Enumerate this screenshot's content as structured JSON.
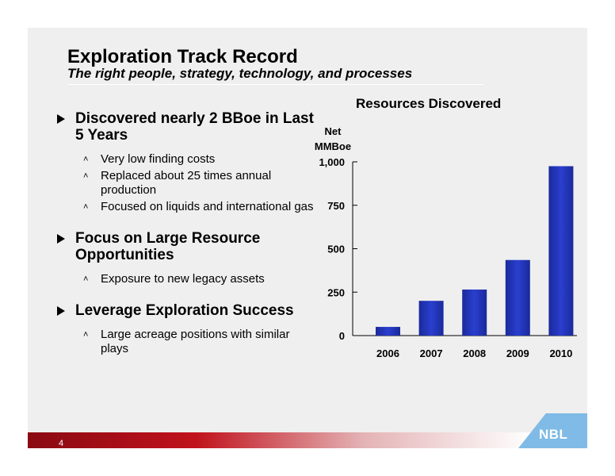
{
  "slide": {
    "title": "Exploration Track Record",
    "subtitle": "The right people, strategy, technology, and processes",
    "page_number": "4",
    "logo": "NBL"
  },
  "bullets": [
    {
      "text": "Discovered nearly 2 BBoe in Last 5 Years",
      "sub": [
        "Very low finding costs",
        "Replaced about 25 times annual production",
        "Focused on liquids and international gas"
      ]
    },
    {
      "text": "Focus on Large Resource Opportunities",
      "sub": [
        "Exposure to new legacy assets"
      ]
    },
    {
      "text": "Leverage Exploration Success",
      "sub": [
        "Large acreage positions with similar plays"
      ]
    }
  ],
  "chart_data": {
    "type": "bar",
    "title": "Resources Discovered",
    "ylabel": "Net MMBoe",
    "ylabel_lines": [
      "Net",
      "MMBoe"
    ],
    "categories": [
      "2006",
      "2007",
      "2008",
      "2009",
      "2010"
    ],
    "values": [
      50,
      200,
      265,
      435,
      975
    ],
    "ylim": [
      0,
      1000
    ],
    "yticks": [
      0,
      250,
      500,
      750,
      1000
    ],
    "ytick_labels": [
      "0",
      "250",
      "500",
      "750",
      "1,000"
    ],
    "bar_color": "#2a3fcf",
    "grid": false,
    "legend": "none"
  },
  "colors": {
    "background": "#efefef",
    "footer_red": "#c0121c",
    "logo_blue": "#7fbbe6"
  }
}
